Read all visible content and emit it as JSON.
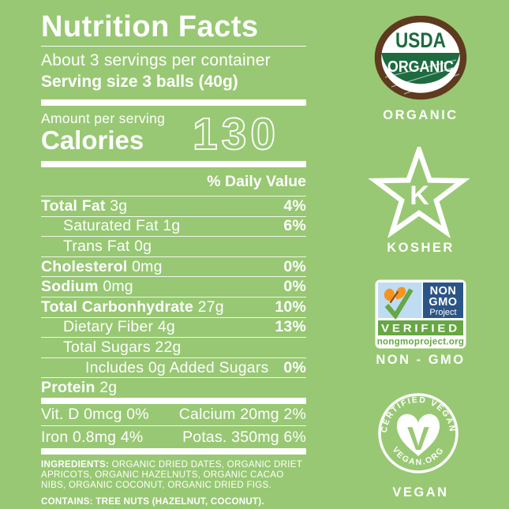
{
  "colors": {
    "bg": "#98C873",
    "usda-brown": "#5E3A1E",
    "usda-green": "#1E6B40",
    "ngmo-blue": "#2B5586",
    "ngmo-green": "#67A744",
    "ngmo-sky": "#BFDCF2",
    "ngmo-orange": "#F7941E"
  },
  "panel": {
    "title": "Nutrition Facts",
    "servings_line": "About 3 servings per container",
    "serving_size_line": "Serving size 3 balls (40g)",
    "amount_label": "Amount per serving",
    "calories_label": "Calories",
    "calories_value": "130",
    "daily_value_header": "% Daily Value",
    "rows": [
      {
        "label": "Total Fat",
        "amount": "3g",
        "dv": "4%",
        "bold": true,
        "indent": 0
      },
      {
        "label": "Saturated Fat",
        "amount": "1g",
        "dv": "6%",
        "bold": false,
        "indent": 1
      },
      {
        "label": "Trans Fat",
        "amount": "0g",
        "dv": "",
        "bold": false,
        "indent": 1
      },
      {
        "label": "Cholesterol",
        "amount": "0mg",
        "dv": "0%",
        "bold": true,
        "indent": 0
      },
      {
        "label": "Sodium",
        "amount": "0mg",
        "dv": "0%",
        "bold": true,
        "indent": 0
      },
      {
        "label": "Total Carbonhydrate",
        "amount": "27g",
        "dv": "10%",
        "bold": true,
        "indent": 0
      },
      {
        "label": "Dietary Fiber",
        "amount": "4g",
        "dv": "13%",
        "bold": false,
        "indent": 1
      },
      {
        "label": "Total Sugars",
        "amount": "22g",
        "dv": "",
        "bold": false,
        "indent": 1
      },
      {
        "label": "Includes 0g Added Sugars",
        "amount": "",
        "dv": "0%",
        "bold": false,
        "indent": 2
      },
      {
        "label": "Protein",
        "amount": "2g",
        "dv": "",
        "bold": true,
        "indent": 0
      }
    ],
    "micronutrients": [
      {
        "left": "Vit. D 0mcg 0%",
        "right": "Calcium 20mg 2%"
      },
      {
        "left": "Iron 0.8mg 4%",
        "right": "Potas. 350mg 6%"
      }
    ],
    "ingredients_label": "INGREDIENTS:",
    "ingredients_text": "ORGANIC DRIED DATES, ORGANIC DRIET APRICOTS, ORGANIC HAZELNUTS, ORGANIC CACAO NIBS, ORGANIC COCONUT, ORGANIC DRIED FIGS.",
    "contains_text": "CONTAINS: TREE NUTS (HAZELNUT, COCONUT)."
  },
  "badges": {
    "usda": {
      "line1": "USDA",
      "line2": "ORGANIC",
      "caption": "ORGANIC"
    },
    "kosher": {
      "letter": "K",
      "caption": "KOSHER"
    },
    "nongmo": {
      "line1": "NON",
      "line2": "GMO",
      "line3": "Project",
      "verified": "VERIFIED",
      "url": "nongmoproject.org",
      "caption": "NON - GMO"
    },
    "vegan": {
      "top_text": "CERTIFIED VEGAN",
      "bottom_text": "VEGAN.ORG",
      "caption": "VEGAN"
    }
  }
}
